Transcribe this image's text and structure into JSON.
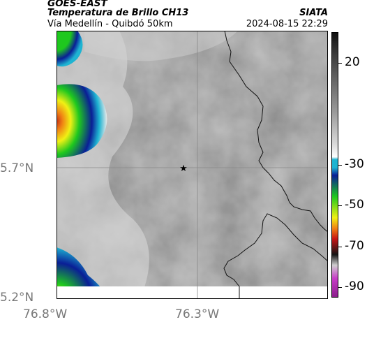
{
  "header": {
    "source": "GOES-EAST",
    "product": "Temperatura de Brillo CH13",
    "organization": "SIATA",
    "route": "Vía Medellín - Quibdó 50km",
    "timestamp": "2024-08-15 22:29"
  },
  "map": {
    "lat_labels": [
      "5.7°N",
      "5.2°N"
    ],
    "lon_labels": [
      "76.8°W",
      "76.3°W"
    ],
    "marker_icon": "star-icon",
    "colorbar": {
      "tick_labels": [
        "20",
        "-30",
        "-50",
        "-70",
        "-90"
      ],
      "tick_values": [
        20,
        -30,
        -50,
        -70,
        -90
      ],
      "value_range": [
        -95,
        35
      ],
      "colors": {
        "warm": "#d9d9d9",
        "cyan": "#1eb4d2",
        "blue": "#0a1e96",
        "green": "#1ec81e",
        "yellow": "#f0f014",
        "orange": "#f08214",
        "red": "#c81414",
        "dark": "#141414",
        "magenta": "#c83cc8"
      }
    }
  }
}
